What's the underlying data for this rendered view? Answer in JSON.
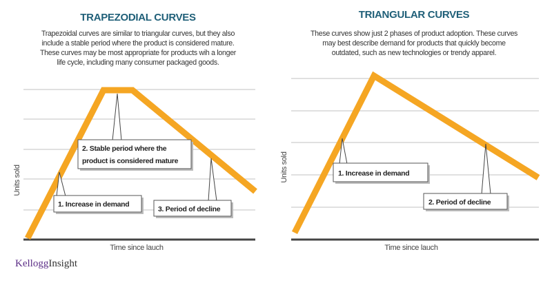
{
  "left": {
    "title": "TRAPEZODIAL CURVES",
    "description": [
      "Trapezoidal curves are similar to triangular curves, but they also",
      "include a stable period where the product is considered mature.",
      "These curves may be most appropriate for products wih a longer",
      "life cycle, including many consumer packaged goods."
    ],
    "callouts": {
      "one": "1. Increase in demand",
      "two_line1": "2. Stable period where the",
      "two_line2": "product is considered mature",
      "three": "3. Period of decline"
    },
    "ylabel": "Units sold",
    "xlabel": "Time since lauch"
  },
  "right": {
    "title": "TRIANGULAR CURVES",
    "description": [
      "These curves show just 2 phases of product adoption. These curves",
      "may best describe demand for products that quickly become",
      "outdated, such as new technologies or trendy apparel."
    ],
    "callouts": {
      "one": "1.  Increase in demand",
      "two": "2. Period of decline"
    },
    "ylabel": "Units sold",
    "xlabel": "Time since lauch"
  },
  "logo": {
    "part1": "Kellogg",
    "part2": "Insight"
  },
  "colors": {
    "curve": "#f5a623",
    "title": "#1f5f78",
    "logo": "#5b2d86"
  }
}
